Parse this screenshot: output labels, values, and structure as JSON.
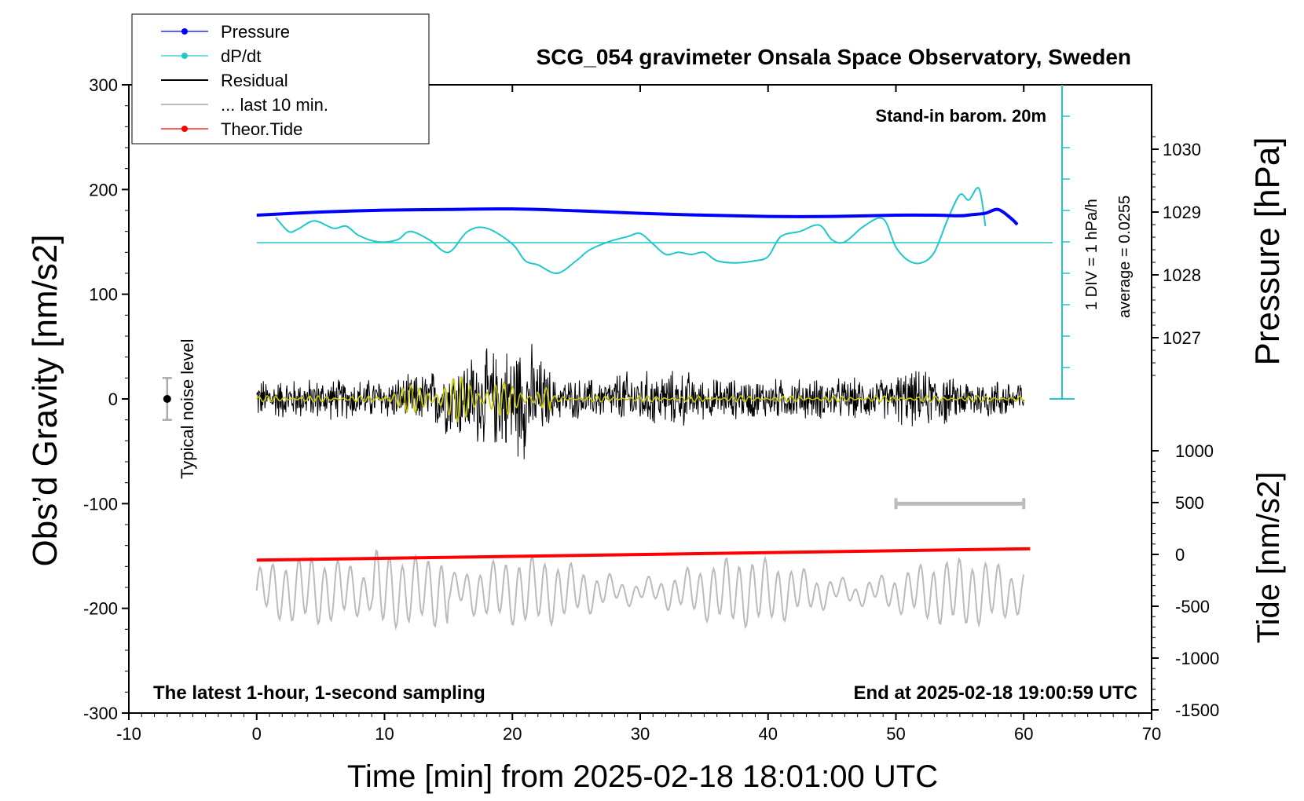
{
  "chart_data": {
    "type": "line",
    "title": "SCG_054 gravimeter Onsala Space Observatory, Sweden",
    "xlabel": "Time [min] from 2025-02-18 18:01:00 UTC",
    "ylabel_left": "Obs’d Gravity [nm/s2]",
    "ylabel_pressure": "Pressure [hPa]",
    "ylabel_tide": "Tide [nm/s2]",
    "xlim": [
      -10,
      70
    ],
    "ylim_left": [
      -300,
      300
    ],
    "x_ticks": [
      "-10",
      "0",
      "10",
      "20",
      "30",
      "40",
      "50",
      "60",
      "70"
    ],
    "y_ticks_left": [
      "300",
      "200",
      "100",
      "0",
      "-100",
      "-200",
      "-300"
    ],
    "pressure_ticks": [
      "1030",
      "1029",
      "1028",
      "1027"
    ],
    "tide_ticks": [
      "1000",
      "500",
      "0",
      "-500",
      "-1000",
      "-1500"
    ],
    "legend": [
      {
        "label": "Pressure",
        "color": "#0000ff"
      },
      {
        "label": "dP/dt",
        "color": "#20c8c8"
      },
      {
        "label": "Residual",
        "color": "#000000"
      },
      {
        "label": "... last 10 min.",
        "color": "#bbbbbb"
      },
      {
        "label": "Theor.Tide",
        "color": "#ff0000"
      }
    ],
    "annotations": {
      "stand_in": "Stand-in barom. 20m",
      "div_label": "1 DIV = 1 hPa/h",
      "average_label": "average = 0.0255",
      "noise_label": "Typical noise level",
      "bottom_left": "The latest 1-hour, 1-second sampling",
      "bottom_right": "End at 2025-02-18 19:00:59 UTC"
    },
    "series": [
      {
        "name": "Pressure",
        "unit": "hPa",
        "x": [
          0,
          5,
          10,
          15,
          20,
          25,
          30,
          35,
          40,
          45,
          50,
          53,
          55,
          56,
          57,
          58,
          59,
          59.5
        ],
        "values": [
          1028.95,
          1029.0,
          1029.03,
          1029.04,
          1029.05,
          1029.02,
          1028.98,
          1028.95,
          1028.93,
          1028.93,
          1028.95,
          1028.95,
          1028.94,
          1028.96,
          1028.98,
          1029.04,
          1028.9,
          1028.8
        ]
      },
      {
        "name": "dP/dt",
        "unit": "nm/s2 (display)",
        "x": [
          1.5,
          2.5,
          3.2,
          4.5,
          6,
          7,
          8,
          9.5,
          11,
          12,
          13.5,
          15,
          16.5,
          18,
          20,
          21,
          22,
          23.5,
          25,
          26,
          27.5,
          29,
          30,
          31,
          32,
          33,
          34,
          35,
          36,
          37.5,
          39,
          40,
          41,
          42.5,
          44,
          45,
          46,
          47.5,
          49,
          50,
          51,
          52,
          53,
          54,
          55,
          55.7,
          56.5,
          57
        ],
        "values": [
          173,
          160,
          162,
          170,
          163,
          165,
          156,
          150,
          152,
          160,
          152,
          140,
          160,
          163,
          148,
          132,
          128,
          120,
          132,
          142,
          150,
          155,
          158,
          148,
          138,
          140,
          138,
          140,
          132,
          130,
          132,
          136,
          155,
          160,
          166,
          152,
          150,
          165,
          172,
          145,
          132,
          130,
          140,
          170,
          195,
          190,
          201,
          165
        ]
      },
      {
        "name": "Residual",
        "unit": "nm/s2",
        "x": [
          0,
          60
        ],
        "values": [
          0,
          0
        ]
      },
      {
        "name": "... last 10 min.",
        "unit": "nm/s2 (display)",
        "x": [
          0,
          60
        ],
        "values": [
          -163,
          -165
        ]
      },
      {
        "name": "Theor.Tide",
        "unit": "nm/s2",
        "x": [
          0,
          60.5
        ],
        "values": [
          -55,
          55
        ]
      }
    ],
    "noise_bar": {
      "x": -7,
      "center": 0,
      "half_range": 20
    },
    "scale_bar": {
      "x_start": 50,
      "x_end": 60,
      "y": -100
    }
  }
}
